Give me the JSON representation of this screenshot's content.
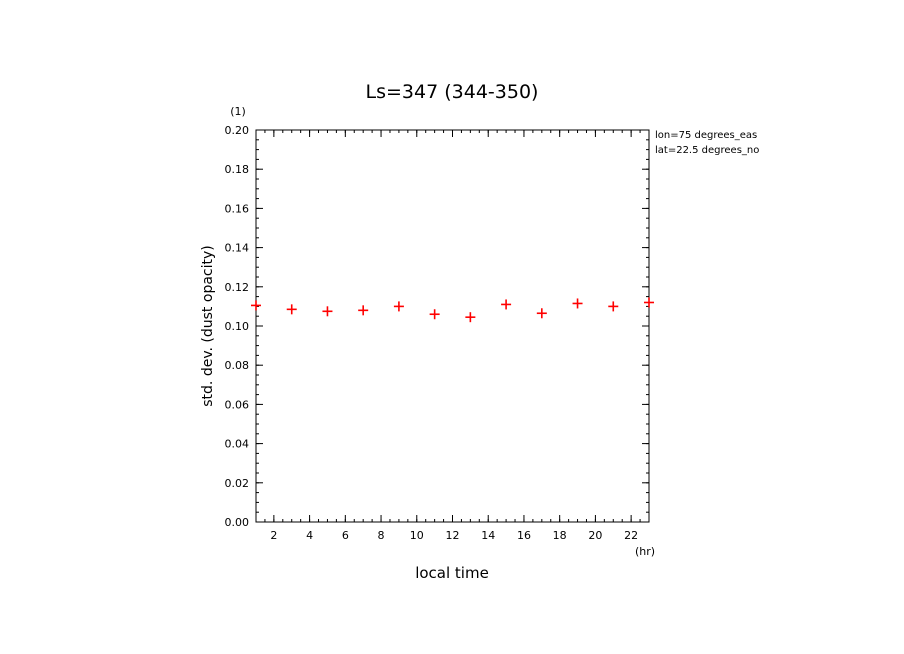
{
  "chart_data": {
    "type": "scatter",
    "title": "Ls=347 (344-350)",
    "xlabel": "local time",
    "ylabel": "std. dev. (dust opacity)",
    "x_unit": "(hr)",
    "y_unit": "(1)",
    "xlim": [
      1,
      23
    ],
    "ylim": [
      0,
      0.2
    ],
    "x_ticks": [
      2,
      4,
      6,
      8,
      10,
      12,
      14,
      16,
      18,
      20,
      22
    ],
    "y_ticks": [
      0.0,
      0.02,
      0.04,
      0.06,
      0.08,
      0.1,
      0.12,
      0.14,
      0.16,
      0.18,
      0.2
    ],
    "annotations": [
      "lon=75 degrees_eas",
      "lat=22.5 degrees_no"
    ],
    "marker": "+",
    "marker_color": "#ff0000",
    "grid": false,
    "series": [
      {
        "x": [
          1,
          3,
          5,
          7,
          9,
          11,
          13,
          15,
          17,
          19,
          21,
          23
        ],
        "y": [
          0.1105,
          0.1085,
          0.1075,
          0.108,
          0.11,
          0.106,
          0.1045,
          0.111,
          0.1065,
          0.1115,
          0.11,
          0.112
        ]
      }
    ]
  }
}
